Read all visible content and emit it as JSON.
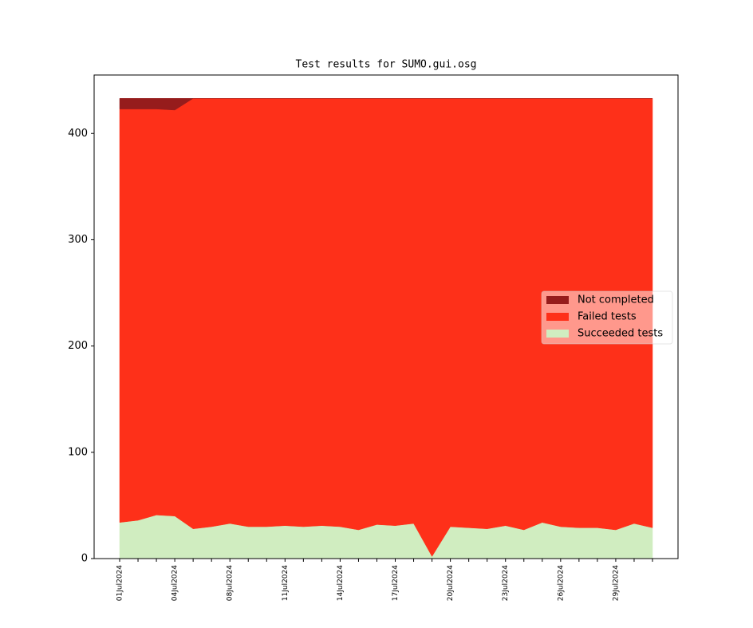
{
  "chart_data": {
    "type": "stacked_area",
    "title": "Test results for SUMO.gui.osg",
    "categories": [
      "01Jul2024",
      null,
      null,
      "04Jul2024",
      null,
      null,
      "08Jul2024",
      null,
      null,
      "11Jul2024",
      null,
      null,
      "14Jul2024",
      null,
      null,
      "17Jul2024",
      null,
      null,
      "20Jul2024",
      null,
      null,
      "23Jul2024",
      null,
      null,
      "26Jul2024",
      null,
      null,
      "29Jul2024",
      null,
      null
    ],
    "series": [
      {
        "name": "Succeeded tests",
        "color": "#d0edc0",
        "values": [
          34,
          36,
          41,
          40,
          28,
          30,
          33,
          30,
          30,
          31,
          30,
          31,
          30,
          27,
          32,
          31,
          33,
          2,
          30,
          29,
          28,
          31,
          27,
          34,
          30,
          29,
          29,
          27,
          33,
          29
        ]
      },
      {
        "name": "Failed tests",
        "color": "#fe3019",
        "values": [
          389,
          387,
          382,
          382,
          405,
          403,
          400,
          403,
          403,
          402,
          403,
          402,
          403,
          406,
          401,
          402,
          400,
          431,
          403,
          404,
          405,
          402,
          406,
          399,
          403,
          404,
          404,
          406,
          400,
          404
        ]
      },
      {
        "name": "Not completed",
        "color": "#961c1c",
        "values": [
          10,
          10,
          10,
          11,
          0,
          0,
          0,
          0,
          0,
          0,
          0,
          0,
          0,
          0,
          0,
          0,
          0,
          0,
          0,
          0,
          0,
          0,
          0,
          0,
          0,
          0,
          0,
          0,
          0,
          0
        ]
      }
    ],
    "ylim": [
      0,
      455
    ],
    "yticks": [
      0,
      100,
      200,
      300,
      400
    ],
    "legend": "center right"
  }
}
